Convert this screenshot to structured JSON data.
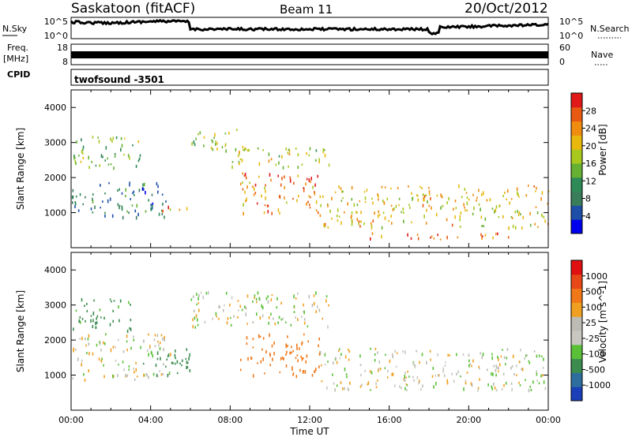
{
  "header": {
    "station": "Saskatoon (fitACF)",
    "beam": "Beam 11",
    "date": "20/Oct/2012"
  },
  "noise_panel": {
    "left_label": "N.Sky",
    "right_label": "N.Search",
    "left_ticks": [
      "10^5",
      "10^0"
    ],
    "right_ticks": [
      "10^5",
      "10^0"
    ]
  },
  "freq_panel": {
    "left_label_line1": "Freq.",
    "left_label_line2": "[MHz]",
    "right_label": "Nave",
    "left_ticks": [
      "18",
      "8"
    ],
    "right_ticks": [
      "60",
      "0"
    ]
  },
  "cpid": {
    "label": "CPID",
    "value": "twofsound -3501"
  },
  "axes": {
    "ylabel": "Slant Range [km]",
    "xlabel": "Time UT",
    "y_ticks": [
      "4000",
      "3000",
      "2000",
      "1000"
    ],
    "x_ticks": [
      "00:00",
      "04:00",
      "08:00",
      "12:00",
      "16:00",
      "20:00",
      "00:00"
    ]
  },
  "colors": {
    "power": [
      "#0000ee",
      "#1d4fa8",
      "#3a7d5a",
      "#2e8b57",
      "#66b032",
      "#a8c81e",
      "#e8b80e",
      "#f08c10",
      "#e85a12",
      "#e01818"
    ],
    "velocity": [
      "#1a3fb8",
      "#2e6e9e",
      "#3c8c50",
      "#5ac038",
      "#c8c8c0",
      "#bcbcb4",
      "#f0a020",
      "#f07818",
      "#e84818",
      "#e01010"
    ]
  },
  "chart_data": [
    {
      "type": "heatmap",
      "title": "",
      "xlabel": "Time UT",
      "ylabel": "Slant Range [km]",
      "xlim": [
        0,
        24
      ],
      "ylim": [
        0,
        4500
      ],
      "colorbar": {
        "label": "Power [dB]",
        "ticks": [
          "28",
          "24",
          "20",
          "16",
          "12",
          "8",
          "4"
        ],
        "range": [
          0,
          32
        ]
      },
      "features": [
        {
          "t_start": 0,
          "t_end": 3.5,
          "r_low": 2300,
          "r_high": 3200,
          "value": 14
        },
        {
          "t_start": 0,
          "t_end": 5,
          "r_low": 900,
          "r_high": 1900,
          "value": 8
        },
        {
          "t_start": 4.5,
          "t_end": 5.8,
          "r_low": 1000,
          "r_high": 1300,
          "value": 24
        },
        {
          "t_start": 6,
          "t_end": 9,
          "r_low": 2800,
          "r_high": 3400,
          "value": 16
        },
        {
          "t_start": 8.5,
          "t_end": 12.5,
          "r_low": 1000,
          "r_high": 2200,
          "value": 24
        },
        {
          "t_start": 12.5,
          "t_end": 24,
          "r_low": 600,
          "r_high": 1800,
          "value": 20
        },
        {
          "t_start": 8,
          "t_end": 13,
          "r_low": 2300,
          "r_high": 2900,
          "value": 18
        },
        {
          "t_start": 15,
          "t_end": 22,
          "r_low": 250,
          "r_high": 450,
          "value": 26
        }
      ]
    },
    {
      "type": "heatmap",
      "title": "",
      "xlabel": "Time UT",
      "ylabel": "Slant Range [km]",
      "xlim": [
        0,
        24
      ],
      "ylim": [
        0,
        4500
      ],
      "colorbar": {
        "label": "Velocity [m s^-1]",
        "ticks": [
          "1000",
          "500",
          "100",
          "25",
          "-25",
          "-100",
          "-500",
          "-1000"
        ]
      },
      "features": [
        {
          "t_start": 0,
          "t_end": 3,
          "r_low": 2300,
          "r_high": 3200,
          "value": 100
        },
        {
          "t_start": 0,
          "t_end": 5,
          "r_low": 900,
          "r_high": 2200,
          "value": 0
        },
        {
          "t_start": 3.5,
          "t_end": 6,
          "r_low": 1000,
          "r_high": 1800,
          "value": 150
        },
        {
          "t_start": 6,
          "t_end": 13,
          "r_low": 2400,
          "r_high": 3400,
          "value": 0
        },
        {
          "t_start": 8.5,
          "t_end": 12.5,
          "r_low": 1000,
          "r_high": 2200,
          "value": -200
        },
        {
          "t_start": 12.5,
          "t_end": 24,
          "r_low": 600,
          "r_high": 1800,
          "value": 0
        }
      ]
    }
  ]
}
